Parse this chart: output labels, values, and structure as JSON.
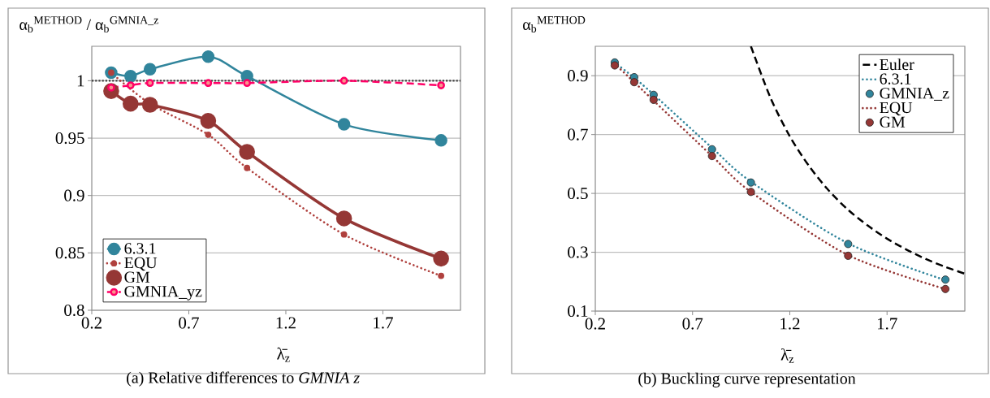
{
  "chart_data": [
    {
      "type": "line",
      "title": "(a) Relative differences to *GMNIA z*",
      "ylabel": "α$_{b}$$^{METHOD}$ / α$_{b}$$^{GMNIA_z}$",
      "xlabel": "λ̄$_{z}$",
      "x": [
        0.3,
        0.4,
        0.5,
        0.8,
        1.0,
        1.5,
        2.0
      ],
      "xlim": [
        0.2,
        2.1
      ],
      "xticks": [
        0.2,
        0.7,
        1.2,
        1.7
      ],
      "ylim": [
        0.8,
        1.03
      ],
      "yticks": [
        0.8,
        0.85,
        0.9,
        0.95,
        1
      ],
      "grid": "y",
      "legend": "bottom left",
      "ref_lines": [
        {
          "axis": "y",
          "value": 1,
          "color": "#404040",
          "line_style": "dotted"
        }
      ],
      "series": [
        {
          "name": "6.3.1",
          "color": "#31859c",
          "marker": "circle",
          "line_style": "solid",
          "values": [
            1.007,
            1.004,
            1.01,
            1.021,
            1.004,
            0.962,
            0.948
          ]
        },
        {
          "name": "EQU",
          "color": "#b0413e",
          "marker": "circle",
          "line_style": "dotted",
          "values": [
            1.007,
            null,
            0.98,
            0.953,
            0.924,
            0.866,
            0.83
          ]
        },
        {
          "name": "GM",
          "color": "#953735",
          "marker": "circle",
          "line_style": "solid",
          "values": [
            0.991,
            0.98,
            0.979,
            0.965,
            0.938,
            0.88,
            0.845
          ]
        },
        {
          "name": "GMNIA_yz",
          "color": "#ff0066",
          "marker": "circle",
          "line_style": "dashed",
          "values": [
            0.994,
            0.996,
            0.998,
            0.998,
            0.998,
            1.0,
            0.996
          ]
        }
      ]
    },
    {
      "type": "line",
      "title": "(b) Buckling curve representation",
      "ylabel": "α$_{b}$$^{METHOD}$",
      "xlabel": "λ̄$_{z}$",
      "x": [
        0.3,
        0.4,
        0.5,
        0.8,
        1.0,
        1.5,
        2.0
      ],
      "xlim": [
        0.2,
        2.1
      ],
      "xticks": [
        0.2,
        0.7,
        1.2,
        1.7
      ],
      "ylim": [
        0.1,
        1.0
      ],
      "yticks": [
        0.1,
        0.3,
        0.5,
        0.7,
        0.9
      ],
      "grid": "y",
      "legend": "top right",
      "series": [
        {
          "name": "Euler",
          "color": "#000000",
          "marker": "none",
          "line_style": "dashed",
          "x": [
            1.0,
            1.1,
            1.2,
            1.3,
            1.4,
            1.5,
            1.6,
            1.7,
            1.8,
            1.9,
            2.0,
            2.1
          ],
          "values": [
            1.0,
            0.826,
            0.694,
            0.592,
            0.51,
            0.444,
            0.391,
            0.346,
            0.309,
            0.277,
            0.25,
            0.227
          ]
        },
        {
          "name": "6.3.1",
          "color": "#31859c",
          "marker": "none",
          "line_style": "dotted",
          "values": [
            0.945,
            0.893,
            0.836,
            0.655,
            0.54,
            0.33,
            0.205
          ]
        },
        {
          "name": "GMNIA_z",
          "type": "scatter",
          "color": "#31859c",
          "marker": "circle",
          "values": [
            0.945,
            0.895,
            0.835,
            0.65,
            0.537,
            0.328,
            0.207
          ]
        },
        {
          "name": "EQU",
          "color": "#953735",
          "marker": "none",
          "line_style": "dotted",
          "values": [
            0.94,
            0.878,
            0.815,
            0.627,
            0.505,
            0.29,
            0.175
          ]
        },
        {
          "name": "GM",
          "type": "scatter",
          "color": "#953735",
          "marker": "circle",
          "values": [
            0.935,
            0.878,
            0.818,
            0.627,
            0.505,
            0.288,
            0.175
          ]
        }
      ]
    }
  ]
}
